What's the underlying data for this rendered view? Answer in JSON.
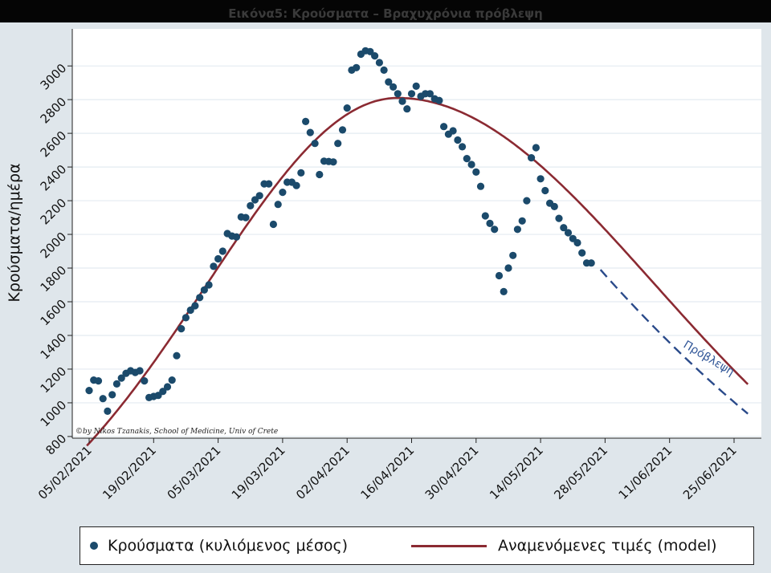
{
  "title": "Εικόνα5: Κρούσματα – Βραχυχρόνια πρόβλεψη",
  "colors": {
    "page_bg": "#dfe6eb",
    "plot_bg": "#ffffff",
    "grid": "#e3ebf0",
    "points": "#1b4a6b",
    "model": "#8b2a32",
    "forecast": "#2a4a8a"
  },
  "chart_data": {
    "type": "scatter",
    "ylabel": "Κρούσματα/ημέρα",
    "xlabel": "",
    "ylim": [
      790,
      3220
    ],
    "y_ticks": [
      800,
      1000,
      1200,
      1400,
      1600,
      1800,
      2000,
      2200,
      2400,
      2600,
      2800,
      3000
    ],
    "x_tick_labels": [
      "05/02/2021",
      "19/02/2021",
      "05/03/2021",
      "19/03/2021",
      "02/04/2021",
      "16/04/2021",
      "30/04/2021",
      "14/05/2021",
      "28/05/2021",
      "11/06/2021",
      "25/06/2021"
    ],
    "grid": true,
    "legend_position": "bottom",
    "annotations": {
      "credit": "©by Nikos Tzanakis, School of Medicine, Univ of Crete",
      "forecast_label": "Πρόβλεψη"
    },
    "series": [
      {
        "name": "Κρούσματα (κυλιόμενος μέσος)",
        "type": "scatter",
        "x_start_date": "05/02/2021",
        "values": [
          1073,
          1135,
          1130,
          1025,
          950,
          1048,
          1112,
          1147,
          1175,
          1190,
          1180,
          1190,
          1130,
          1031,
          1038,
          1044,
          1068,
          1095,
          1135,
          1280,
          1440,
          1505,
          1550,
          1576,
          1625,
          1670,
          1700,
          1810,
          1855,
          1900,
          2005,
          1990,
          1985,
          2103,
          2100,
          2170,
          2205,
          2230,
          2300,
          2300,
          2060,
          2178,
          2250,
          2310,
          2310,
          2290,
          2365,
          2670,
          2605,
          2540,
          2355,
          2435,
          2433,
          2430,
          2540,
          2620,
          2750,
          2975,
          2990,
          3070,
          3090,
          3085,
          3060,
          3020,
          2975,
          2905,
          2875,
          2835,
          2790,
          2745,
          2835,
          2880,
          2820,
          2835,
          2835,
          2805,
          2795,
          2640,
          2595,
          2615,
          2560,
          2520,
          2450,
          2415,
          2370,
          2285,
          2110,
          2065,
          2030,
          1755,
          1660,
          1800,
          1875,
          2030,
          2080,
          2200,
          2455,
          2515,
          2330,
          2260,
          2185,
          2165,
          2095,
          2040,
          2010,
          1975,
          1950,
          1890,
          1830,
          1830
        ]
      },
      {
        "name": "Αναμενόμενες τιμές (model)",
        "type": "line",
        "peak": 2810,
        "peak_day": 67,
        "start_value": 760,
        "end_day": 143,
        "end_value": 1110
      },
      {
        "name": "Πρόβλεψη",
        "type": "dashed-line",
        "start_day": 111,
        "start_value": 1790,
        "end_day": 143,
        "end_value": 935
      }
    ]
  },
  "legend": {
    "points_label": "Κρούσματα (κυλιόμενος μέσος)",
    "model_label": "Αναμενόμενες τιμές (model)"
  }
}
